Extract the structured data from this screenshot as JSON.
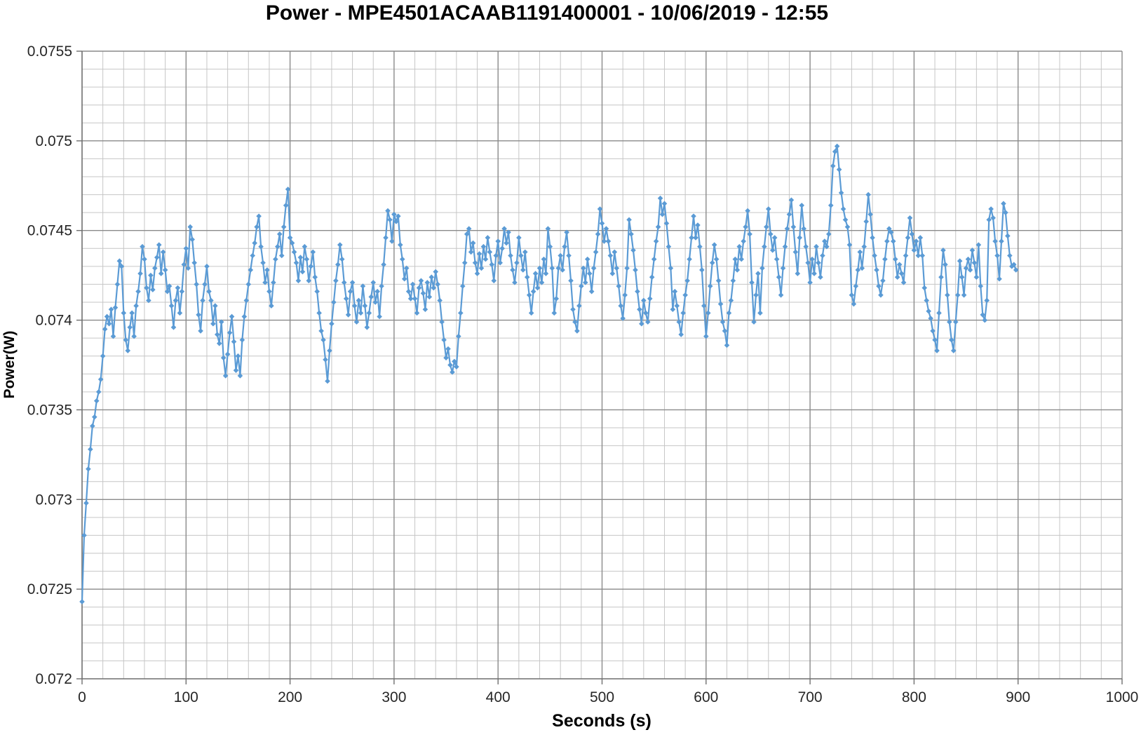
{
  "chart": {
    "title": "Power - MPE4501ACAAB1191400001 - 10/06/2019 - 12:55",
    "x_axis_label": "Seconds (s)",
    "y_axis_label": "Power(W)"
  },
  "chart_data": {
    "type": "line",
    "title": "Power - MPE4501ACAAB1191400001 - 10/06/2019 - 12:55",
    "xlabel": "Seconds (s)",
    "ylabel": "Power(W)",
    "xlim": [
      0,
      1000
    ],
    "ylim": [
      0.072,
      0.0755
    ],
    "x_major_unit": 100,
    "x_minor_unit": 20,
    "y_major_unit": 0.0005,
    "y_minor_unit": 0.0001,
    "x_tick_labels": [
      "0",
      "100",
      "200",
      "300",
      "400",
      "500",
      "600",
      "700",
      "800",
      "900",
      "1000"
    ],
    "y_tick_labels": [
      "0.072",
      "0.0725",
      "0.073",
      "0.0735",
      "0.074",
      "0.0745",
      "0.075",
      "0.0755"
    ],
    "grid": "major-and-minor",
    "legend": "none",
    "marker": "diamond",
    "colors": {
      "series": "#5B9BD5",
      "major_grid": "#8A8A8A",
      "minor_grid": "#C6C6C6",
      "axis": "#6F6F6F",
      "tick_text": "#262626"
    },
    "series": [
      {
        "name": "Power",
        "x": [
          0,
          2,
          4,
          6,
          8,
          10,
          12,
          14,
          16,
          18,
          20,
          22,
          24,
          26,
          28,
          30,
          32,
          34,
          36,
          38,
          40,
          42,
          44,
          46,
          48,
          50,
          52,
          54,
          56,
          58,
          60,
          62,
          64,
          66,
          68,
          70,
          72,
          74,
          76,
          78,
          80,
          82,
          84,
          86,
          88,
          90,
          92,
          94,
          96,
          98,
          100,
          102,
          104,
          106,
          108,
          110,
          112,
          114,
          116,
          118,
          120,
          122,
          124,
          126,
          128,
          130,
          132,
          134,
          136,
          138,
          140,
          142,
          144,
          146,
          148,
          150,
          152,
          154,
          156,
          158,
          160,
          162,
          164,
          166,
          168,
          170,
          172,
          174,
          176,
          178,
          180,
          182,
          184,
          186,
          188,
          190,
          192,
          194,
          196,
          198,
          200,
          202,
          204,
          206,
          208,
          210,
          212,
          214,
          216,
          218,
          220,
          222,
          224,
          226,
          228,
          230,
          232,
          234,
          236,
          238,
          240,
          242,
          244,
          246,
          248,
          250,
          252,
          254,
          256,
          258,
          260,
          262,
          264,
          266,
          268,
          270,
          272,
          274,
          276,
          278,
          280,
          282,
          284,
          286,
          288,
          290,
          292,
          294,
          296,
          298,
          300,
          302,
          304,
          306,
          308,
          310,
          312,
          314,
          316,
          318,
          320,
          322,
          324,
          326,
          328,
          330,
          332,
          334,
          336,
          338,
          340,
          342,
          344,
          346,
          348,
          350,
          352,
          354,
          356,
          358,
          360,
          362,
          364,
          366,
          368,
          370,
          372,
          374,
          376,
          378,
          380,
          382,
          384,
          386,
          388,
          390,
          392,
          394,
          396,
          398,
          400,
          402,
          404,
          406,
          408,
          410,
          412,
          414,
          416,
          418,
          420,
          422,
          424,
          426,
          428,
          430,
          432,
          434,
          436,
          438,
          440,
          442,
          444,
          446,
          448,
          450,
          452,
          454,
          456,
          458,
          460,
          462,
          464,
          466,
          468,
          470,
          472,
          474,
          476,
          478,
          480,
          482,
          484,
          486,
          488,
          490,
          492,
          494,
          496,
          498,
          500,
          502,
          504,
          506,
          508,
          510,
          512,
          514,
          516,
          518,
          520,
          522,
          524,
          526,
          528,
          530,
          532,
          534,
          536,
          538,
          540,
          542,
          544,
          546,
          548,
          550,
          552,
          554,
          556,
          558,
          560,
          562,
          564,
          566,
          568,
          570,
          572,
          574,
          576,
          578,
          580,
          582,
          584,
          586,
          588,
          590,
          592,
          594,
          596,
          598,
          600,
          602,
          604,
          606,
          608,
          610,
          612,
          614,
          616,
          618,
          620,
          622,
          624,
          626,
          628,
          630,
          632,
          634,
          636,
          638,
          640,
          642,
          644,
          646,
          648,
          650,
          652,
          654,
          656,
          658,
          660,
          662,
          664,
          666,
          668,
          670,
          672,
          674,
          676,
          678,
          680,
          682,
          684,
          686,
          688,
          690,
          692,
          694,
          696,
          698,
          700,
          702,
          704,
          706,
          708,
          710,
          712,
          714,
          716,
          718,
          720,
          722,
          724,
          726,
          728,
          730,
          732,
          734,
          736,
          738,
          740,
          742,
          744,
          746,
          748,
          750,
          752,
          754,
          756,
          758,
          760,
          762,
          764,
          766,
          768,
          770,
          772,
          774,
          776,
          778,
          780,
          782,
          784,
          786,
          788,
          790,
          792,
          794,
          796,
          798,
          800,
          802,
          804,
          806,
          808,
          810,
          812,
          814,
          816,
          818,
          820,
          822,
          824,
          826,
          828,
          830,
          832,
          834,
          836,
          838,
          840,
          842,
          844,
          846,
          848,
          850,
          852,
          854,
          856,
          858,
          860,
          862,
          864,
          866,
          868,
          870,
          872,
          874,
          876,
          878,
          880,
          882,
          884,
          886,
          888,
          890,
          892,
          894,
          896,
          898
        ],
        "values": [
          0.07243,
          0.0728,
          0.07298,
          0.07317,
          0.07328,
          0.07341,
          0.07346,
          0.07355,
          0.0736,
          0.07367,
          0.0738,
          0.07395,
          0.07402,
          0.07398,
          0.07406,
          0.07391,
          0.07407,
          0.0742,
          0.07433,
          0.0743,
          0.07404,
          0.07389,
          0.07383,
          0.07396,
          0.07404,
          0.07391,
          0.07408,
          0.07416,
          0.07426,
          0.07441,
          0.07434,
          0.07418,
          0.07411,
          0.07425,
          0.07417,
          0.07429,
          0.07435,
          0.07442,
          0.07426,
          0.07438,
          0.07428,
          0.07416,
          0.07419,
          0.07408,
          0.07396,
          0.07411,
          0.07418,
          0.07404,
          0.07416,
          0.07431,
          0.0744,
          0.07429,
          0.07452,
          0.07445,
          0.07432,
          0.0742,
          0.07403,
          0.07394,
          0.07411,
          0.0742,
          0.0743,
          0.07416,
          0.07411,
          0.07398,
          0.07408,
          0.07392,
          0.07387,
          0.07399,
          0.07379,
          0.07369,
          0.07381,
          0.07393,
          0.07402,
          0.07388,
          0.07372,
          0.0738,
          0.07369,
          0.07389,
          0.07402,
          0.07411,
          0.0742,
          0.07428,
          0.07436,
          0.07443,
          0.07452,
          0.07458,
          0.07441,
          0.07432,
          0.07421,
          0.07428,
          0.07416,
          0.07408,
          0.07421,
          0.07434,
          0.07441,
          0.07448,
          0.07436,
          0.07452,
          0.07464,
          0.07473,
          0.07446,
          0.07443,
          0.07438,
          0.07432,
          0.07422,
          0.07435,
          0.07427,
          0.07441,
          0.07434,
          0.07422,
          0.0743,
          0.07438,
          0.07424,
          0.07416,
          0.07404,
          0.07394,
          0.07389,
          0.07378,
          0.07366,
          0.07383,
          0.07398,
          0.0741,
          0.07422,
          0.07431,
          0.07442,
          0.07434,
          0.07421,
          0.07412,
          0.07403,
          0.07416,
          0.07421,
          0.07408,
          0.07399,
          0.07411,
          0.07404,
          0.07419,
          0.07408,
          0.07396,
          0.07404,
          0.07413,
          0.07421,
          0.0741,
          0.07416,
          0.07402,
          0.07419,
          0.07431,
          0.07446,
          0.07461,
          0.07456,
          0.07444,
          0.07459,
          0.07455,
          0.07458,
          0.07442,
          0.07434,
          0.07423,
          0.07429,
          0.07416,
          0.07412,
          0.0742,
          0.07412,
          0.07404,
          0.07418,
          0.07422,
          0.07415,
          0.07406,
          0.07421,
          0.07413,
          0.07424,
          0.07418,
          0.07427,
          0.0742,
          0.07411,
          0.07399,
          0.07389,
          0.07379,
          0.07384,
          0.07375,
          0.07371,
          0.07377,
          0.07374,
          0.07391,
          0.07404,
          0.07419,
          0.07432,
          0.07448,
          0.07451,
          0.07438,
          0.07443,
          0.07432,
          0.07426,
          0.07437,
          0.07429,
          0.07441,
          0.07434,
          0.07446,
          0.07438,
          0.07431,
          0.07422,
          0.07436,
          0.07444,
          0.07432,
          0.0744,
          0.07451,
          0.07443,
          0.07449,
          0.07436,
          0.07428,
          0.07421,
          0.07432,
          0.07446,
          0.07436,
          0.07428,
          0.07438,
          0.07424,
          0.07414,
          0.07404,
          0.07416,
          0.07426,
          0.07418,
          0.07429,
          0.07421,
          0.07434,
          0.07426,
          0.07451,
          0.07441,
          0.07429,
          0.07404,
          0.07412,
          0.07429,
          0.07436,
          0.07428,
          0.07441,
          0.07449,
          0.07436,
          0.07422,
          0.07406,
          0.07399,
          0.07394,
          0.07408,
          0.07419,
          0.07429,
          0.07421,
          0.07434,
          0.07426,
          0.07416,
          0.07429,
          0.07438,
          0.07448,
          0.07462,
          0.07454,
          0.07444,
          0.07451,
          0.07444,
          0.07436,
          0.07426,
          0.07438,
          0.07429,
          0.07419,
          0.07408,
          0.07401,
          0.07414,
          0.07429,
          0.07456,
          0.07448,
          0.07439,
          0.07428,
          0.07416,
          0.07406,
          0.07398,
          0.07411,
          0.07404,
          0.07399,
          0.07412,
          0.07424,
          0.07434,
          0.07444,
          0.07452,
          0.07468,
          0.07459,
          0.07465,
          0.07454,
          0.07441,
          0.07429,
          0.07406,
          0.07416,
          0.07408,
          0.07399,
          0.07392,
          0.07404,
          0.07414,
          0.07422,
          0.07434,
          0.07446,
          0.07458,
          0.07446,
          0.07453,
          0.07441,
          0.07428,
          0.07408,
          0.07391,
          0.07404,
          0.07419,
          0.07432,
          0.07442,
          0.07434,
          0.07422,
          0.07409,
          0.07399,
          0.07394,
          0.07386,
          0.07404,
          0.07411,
          0.07422,
          0.07434,
          0.07428,
          0.07441,
          0.07434,
          0.07444,
          0.07452,
          0.07461,
          0.07448,
          0.07421,
          0.07399,
          0.07414,
          0.07426,
          0.07404,
          0.07429,
          0.07441,
          0.07452,
          0.07462,
          0.07448,
          0.07439,
          0.07446,
          0.07434,
          0.07424,
          0.07414,
          0.07429,
          0.07441,
          0.07451,
          0.07459,
          0.07467,
          0.07452,
          0.07438,
          0.07426,
          0.07446,
          0.07464,
          0.07451,
          0.07441,
          0.07432,
          0.07421,
          0.07434,
          0.07426,
          0.07441,
          0.07432,
          0.07424,
          0.07436,
          0.07444,
          0.07441,
          0.07448,
          0.07464,
          0.07486,
          0.07494,
          0.07497,
          0.07484,
          0.07471,
          0.07462,
          0.07456,
          0.07452,
          0.07442,
          0.07414,
          0.07409,
          0.07419,
          0.07428,
          0.07438,
          0.07429,
          0.07441,
          0.07455,
          0.0747,
          0.07459,
          0.07446,
          0.07436,
          0.07428,
          0.07419,
          0.07414,
          0.07422,
          0.07434,
          0.07444,
          0.07451,
          0.07449,
          0.07444,
          0.07434,
          0.07424,
          0.07431,
          0.07426,
          0.07421,
          0.07436,
          0.07446,
          0.07457,
          0.07448,
          0.07439,
          0.07444,
          0.07436,
          0.07446,
          0.07436,
          0.07418,
          0.07411,
          0.07405,
          0.07401,
          0.07394,
          0.07389,
          0.07383,
          0.07404,
          0.07424,
          0.07439,
          0.07431,
          0.07414,
          0.07399,
          0.07389,
          0.07383,
          0.07399,
          0.07414,
          0.07433,
          0.07424,
          0.07414,
          0.07429,
          0.07434,
          0.07428,
          0.07439,
          0.07432,
          0.07424,
          0.07442,
          0.07419,
          0.07403,
          0.074,
          0.07411,
          0.07456,
          0.07462,
          0.07457,
          0.07444,
          0.07436,
          0.07423,
          0.07444,
          0.07465,
          0.0746,
          0.07447,
          0.07436,
          0.0743,
          0.07431,
          0.07428
        ]
      }
    ]
  }
}
